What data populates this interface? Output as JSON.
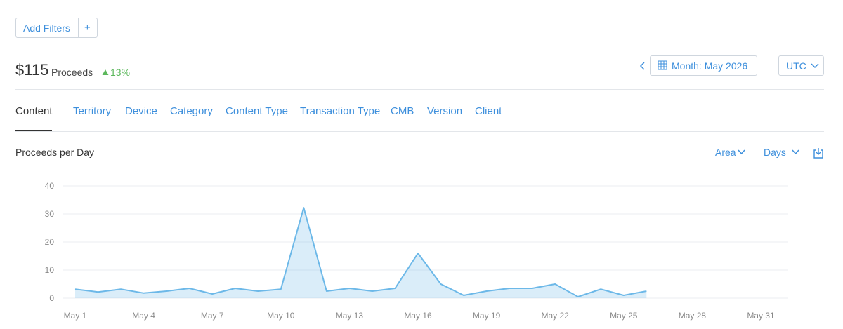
{
  "filters": {
    "add": "Add Filters",
    "plus": "+"
  },
  "summary": {
    "total": "$115",
    "label": "Proceeds",
    "change": "13%"
  },
  "period": {
    "month": "Month: May 2026",
    "timezone": "UTC"
  },
  "tabs": [
    "Content",
    "Territory",
    "Device",
    "Category",
    "Content Type",
    "Transaction Type",
    "CMB",
    "Version",
    "Client"
  ],
  "controls": {
    "chart_style": "Area",
    "granularity": "Days"
  },
  "chart_data": {
    "type": "area",
    "title": "Proceeds per Day",
    "categories": [
      "May 1",
      null,
      null,
      "May 4",
      null,
      null,
      "May 7",
      null,
      null,
      "May 10",
      null,
      null,
      "May 13",
      null,
      null,
      "May 16",
      null,
      null,
      "May 19",
      null,
      null,
      "May 22",
      null,
      null,
      "May 25",
      null,
      null,
      "May 28",
      null,
      null,
      "May 31"
    ],
    "series": [
      {
        "name": "Proceeds",
        "color": "#6cb8e8",
        "values": [
          3.2,
          2.2,
          3.2,
          1.8,
          2.5,
          3.5,
          1.5,
          3.5,
          2.5,
          3.2,
          32.2,
          2.5,
          3.5,
          2.5,
          3.5,
          16,
          5,
          1,
          2.5,
          3.5,
          3.5,
          5,
          0.5,
          3.2,
          1,
          2.5,
          null,
          null,
          null,
          null,
          null
        ]
      }
    ],
    "ylim": [
      0,
      40
    ],
    "yticks": [
      0,
      10,
      20,
      30,
      40
    ],
    "grid": true
  }
}
